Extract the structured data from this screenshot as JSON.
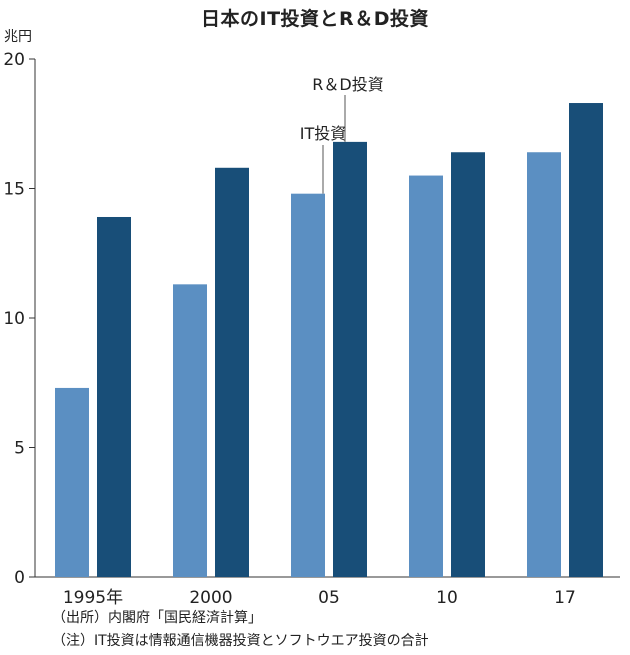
{
  "title": "日本のIT投資とR＆D投資",
  "unit_label": "兆円",
  "notes": {
    "source": "（出所）内閣府「国民経済計算」",
    "note": "（注）IT投資は情報通信機器投資とソフトウエア投資の合計"
  },
  "colors": {
    "it": "#5b8fc2",
    "rd": "#184e78",
    "axis": "#333333",
    "leader": "#555555"
  },
  "chart_data": {
    "type": "bar",
    "title": "日本のIT投資とR＆D投資",
    "ylabel": "兆円",
    "xlabel": "",
    "ylim": [
      0,
      20
    ],
    "yticks": [
      0,
      5,
      10,
      15,
      20
    ],
    "grid": false,
    "categories": [
      "1995年",
      "2000",
      "05",
      "10",
      "17"
    ],
    "series": [
      {
        "name": "IT投資",
        "values": [
          7.3,
          11.3,
          14.8,
          15.5,
          16.4
        ]
      },
      {
        "name": "R＆D投資",
        "values": [
          13.9,
          15.8,
          16.8,
          16.4,
          18.3
        ]
      }
    ],
    "legend": "direct labels over 05 bars"
  }
}
